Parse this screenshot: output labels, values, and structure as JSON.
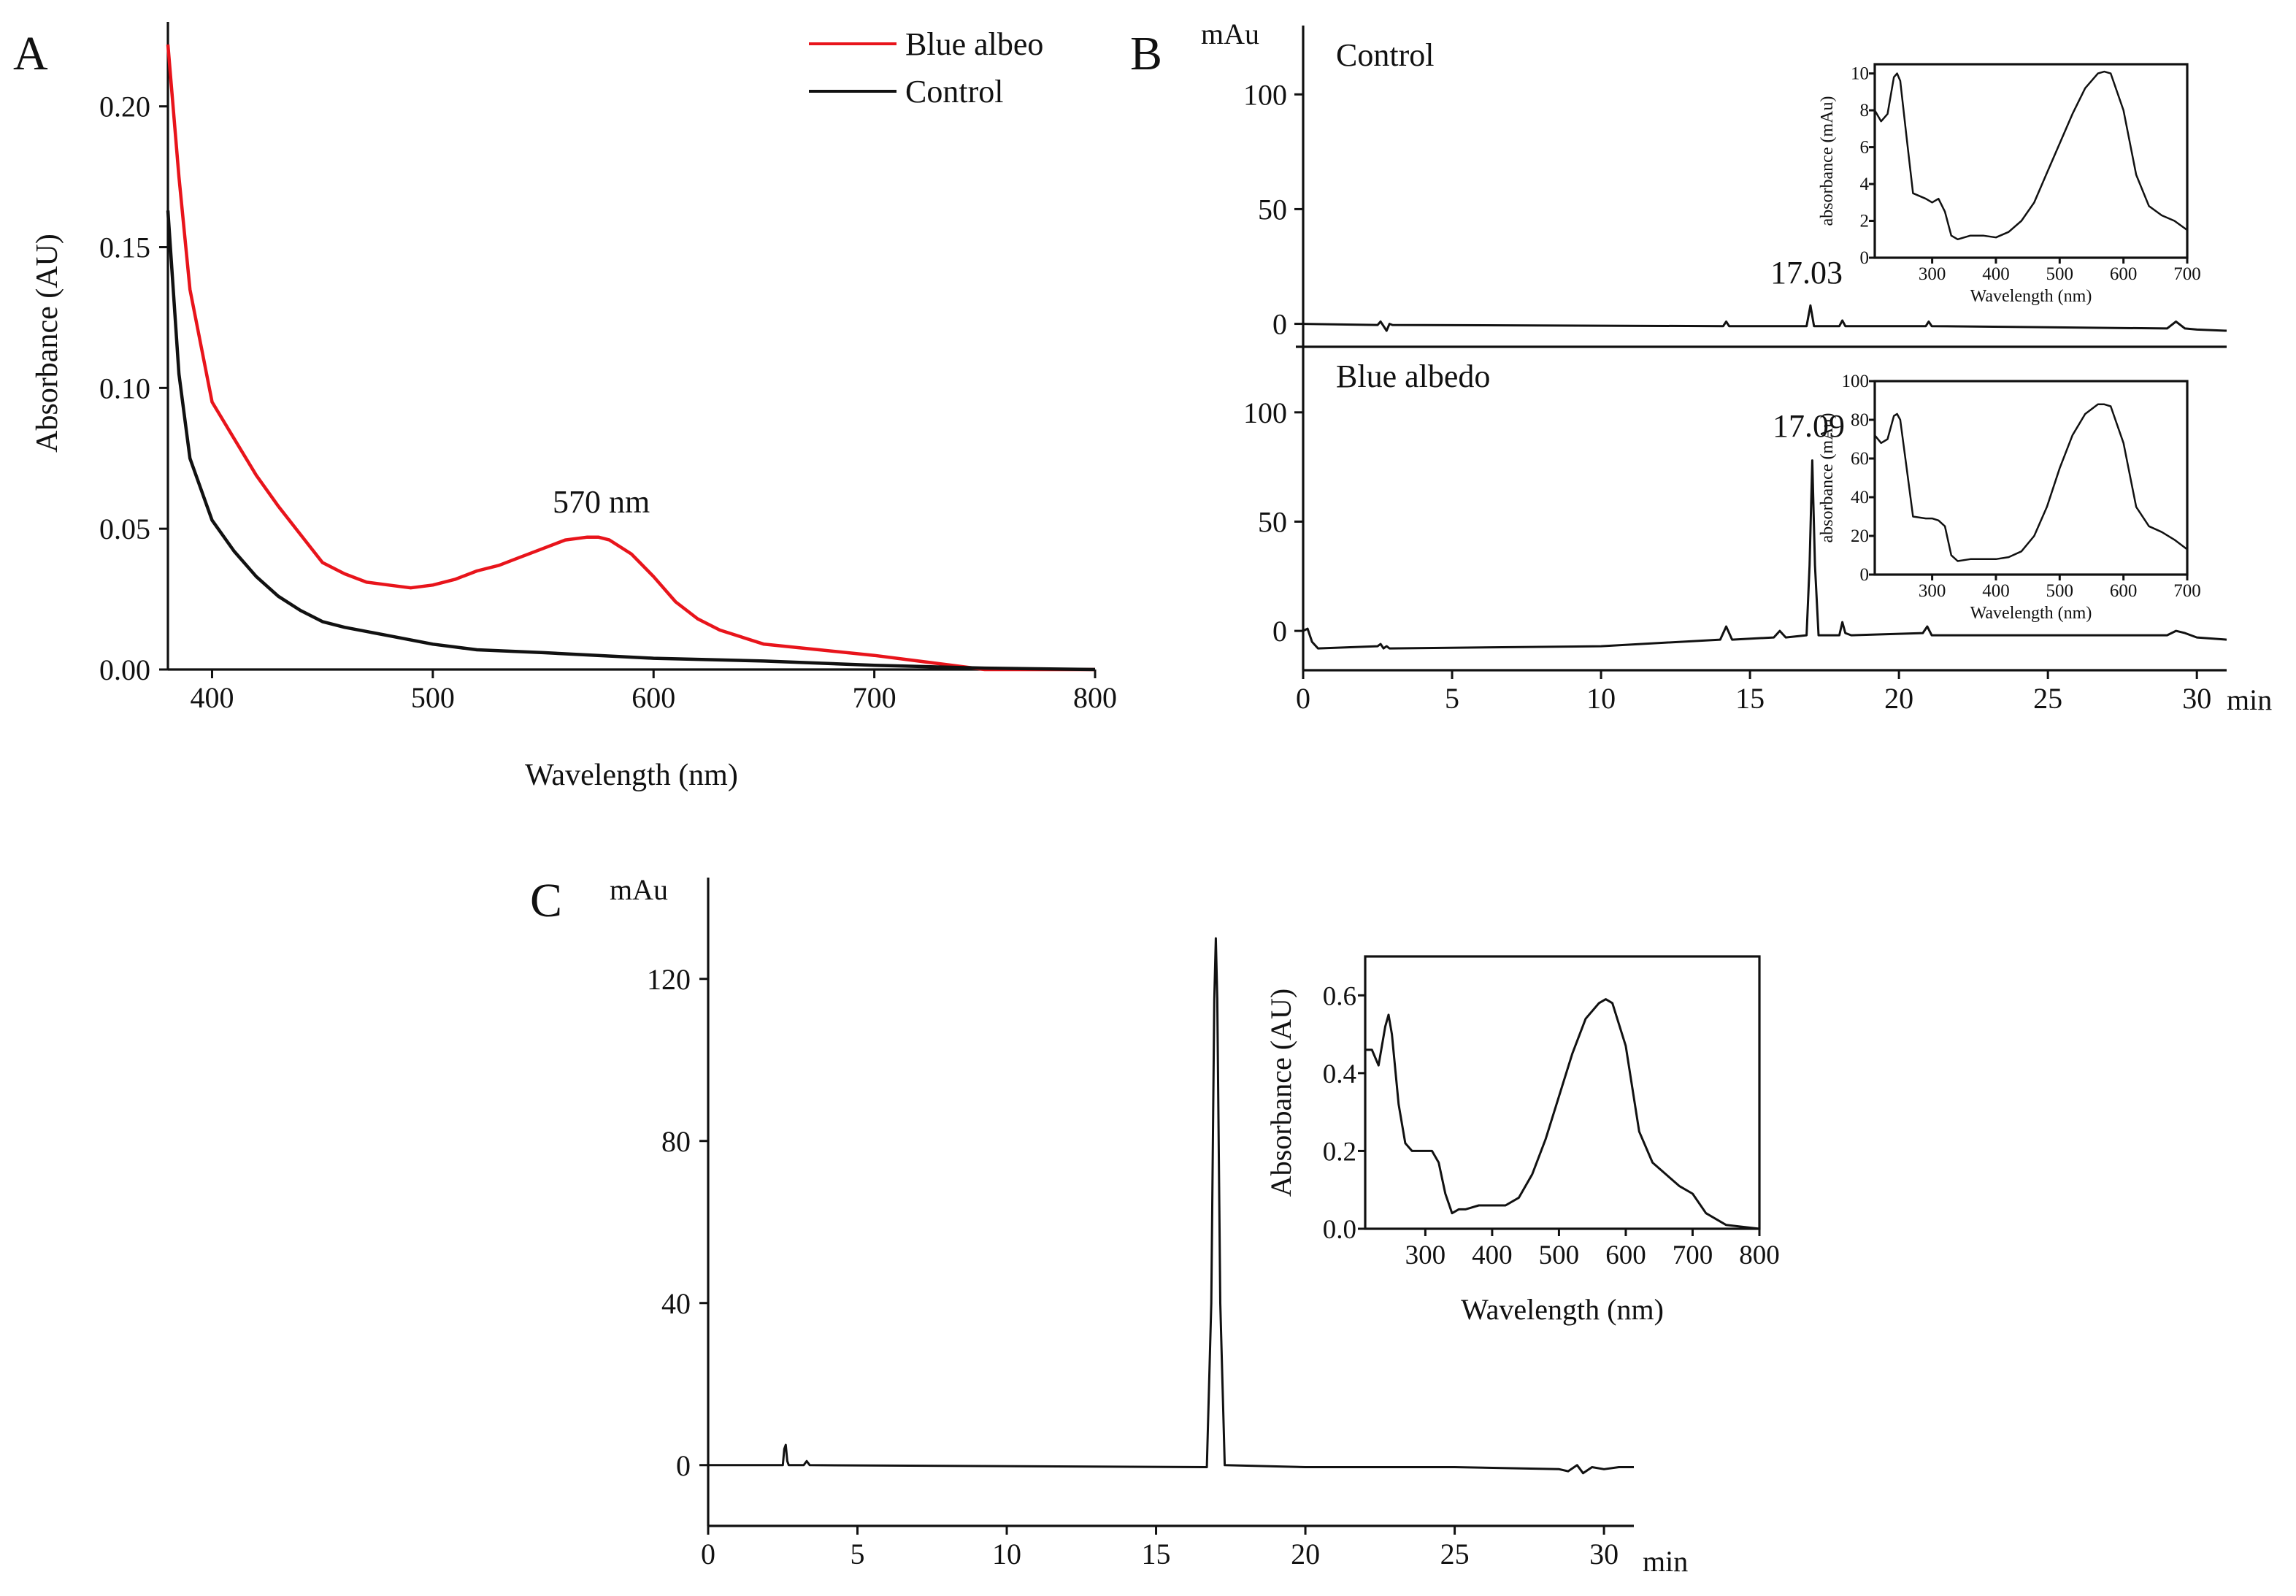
{
  "panels": {
    "A": {
      "label": "A",
      "ann_570": "570 nm"
    },
    "B": {
      "label": "B",
      "unit_y": "mAu",
      "unit_x": "min",
      "control_label": "Control",
      "blue_label": "Blue albedo",
      "peak_control": "17.03",
      "peak_blue": "17.09"
    },
    "C": {
      "label": "C",
      "unit_y": "mAu",
      "unit_x": "min"
    }
  },
  "colors": {
    "red": "#e8141b",
    "black": "#111111"
  },
  "chart_data": [
    {
      "id": "A",
      "type": "line",
      "xlabel": "Wavelength (nm)",
      "ylabel": "Absorbance (AU)",
      "xlim": [
        380,
        800
      ],
      "ylim": [
        0,
        0.23
      ],
      "xticks": [
        400,
        500,
        600,
        700,
        800
      ],
      "xtick_labels": [
        "400",
        "500",
        "600",
        "700",
        "800"
      ],
      "yticks": [
        0,
        0.05,
        0.1,
        0.15,
        0.2
      ],
      "ytick_labels": [
        "0.00",
        "0.05",
        "0.10",
        "0.15",
        "0.20"
      ],
      "legend": "top-right",
      "series": [
        {
          "name": "Blue albeo",
          "color": "#e8141b",
          "x": [
            380,
            385,
            390,
            400,
            410,
            420,
            430,
            440,
            450,
            460,
            470,
            480,
            490,
            500,
            510,
            520,
            530,
            540,
            550,
            560,
            570,
            575,
            580,
            590,
            600,
            610,
            620,
            630,
            650,
            700,
            750,
            800
          ],
          "y": [
            0.222,
            0.175,
            0.135,
            0.095,
            0.082,
            0.069,
            0.058,
            0.048,
            0.038,
            0.034,
            0.031,
            0.03,
            0.029,
            0.03,
            0.032,
            0.035,
            0.037,
            0.04,
            0.043,
            0.046,
            0.047,
            0.047,
            0.046,
            0.041,
            0.033,
            0.024,
            0.018,
            0.014,
            0.009,
            0.005,
            0.0,
            0.0
          ]
        },
        {
          "name": "Control",
          "color": "#111111",
          "x": [
            380,
            385,
            390,
            400,
            410,
            420,
            430,
            440,
            450,
            460,
            480,
            500,
            520,
            550,
            600,
            650,
            700,
            750,
            800
          ],
          "y": [
            0.163,
            0.105,
            0.075,
            0.053,
            0.042,
            0.033,
            0.026,
            0.021,
            0.017,
            0.015,
            0.012,
            0.009,
            0.007,
            0.006,
            0.004,
            0.003,
            0.0015,
            0.0005,
            0.0
          ]
        }
      ]
    },
    {
      "id": "B-control",
      "type": "line",
      "xlim": [
        0,
        31
      ],
      "ylim": [
        -10,
        130
      ],
      "yticks": [
        0,
        50,
        100
      ],
      "ytick_labels": [
        "0",
        "50",
        "100"
      ],
      "series": [
        {
          "name": "Control",
          "x": [
            0,
            2.5,
            2.6,
            2.7,
            2.8,
            2.9,
            3.0,
            14.1,
            14.2,
            14.3,
            16.9,
            17.03,
            17.15,
            18.0,
            18.1,
            18.2,
            20.9,
            21.0,
            21.1,
            29.0,
            29.3,
            29.6,
            30.0,
            31.0
          ],
          "y": [
            0,
            -0.5,
            1,
            -1,
            -3,
            0,
            -0.5,
            -1,
            1,
            -1,
            -1,
            8,
            -1,
            -1,
            1.5,
            -1,
            -1,
            1,
            -1,
            -2,
            1,
            -2,
            -2.5,
            -3
          ]
        }
      ]
    },
    {
      "id": "B-blue",
      "type": "line",
      "xlim": [
        0,
        31
      ],
      "ylim": [
        -18,
        130
      ],
      "yticks": [
        0,
        50,
        100
      ],
      "ytick_labels": [
        "0",
        "50",
        "100"
      ],
      "xticks": [
        0,
        5,
        10,
        15,
        20,
        25,
        30
      ],
      "xtick_labels": [
        "0",
        "5",
        "10",
        "15",
        "20",
        "25",
        "30"
      ],
      "series": [
        {
          "name": "Blue albedo",
          "x": [
            0,
            0.15,
            0.3,
            0.5,
            2.5,
            2.6,
            2.7,
            2.8,
            2.9,
            10,
            14.0,
            14.2,
            14.4,
            15.8,
            16.0,
            16.2,
            16.9,
            17.0,
            17.09,
            17.18,
            17.3,
            18.0,
            18.1,
            18.2,
            18.4,
            20.8,
            20.95,
            21.1,
            29.0,
            29.3,
            29.6,
            30.0,
            31.0
          ],
          "y": [
            0,
            1,
            -5,
            -8,
            -7,
            -6,
            -8,
            -7,
            -8,
            -7,
            -4,
            2,
            -4,
            -3,
            0,
            -3,
            -2,
            30,
            78,
            30,
            -2,
            -2,
            4,
            -1,
            -2,
            -1,
            2,
            -2,
            -2,
            0,
            -1,
            -3,
            -4
          ]
        }
      ]
    },
    {
      "id": "B-control-inset",
      "type": "line",
      "xlabel": "Wavelength (nm)",
      "ylabel": "absorbance (mAu)",
      "xlim": [
        210,
        700
      ],
      "ylim": [
        0,
        10.5
      ],
      "xticks": [
        300,
        400,
        500,
        600,
        700
      ],
      "xtick_labels": [
        "300",
        "400",
        "500",
        "600",
        "700"
      ],
      "yticks": [
        0,
        2,
        4,
        6,
        8,
        10
      ],
      "ytick_labels": [
        "0",
        "2",
        "4",
        "6",
        "8",
        "10"
      ],
      "series": [
        {
          "x": [
            210,
            220,
            230,
            240,
            245,
            250,
            260,
            270,
            290,
            300,
            310,
            320,
            330,
            340,
            360,
            380,
            400,
            420,
            440,
            460,
            480,
            500,
            520,
            540,
            560,
            570,
            580,
            600,
            620,
            640,
            660,
            680,
            700
          ],
          "y": [
            8.0,
            7.4,
            7.8,
            9.8,
            10.0,
            9.6,
            6.5,
            3.5,
            3.2,
            3.0,
            3.2,
            2.5,
            1.2,
            1.0,
            1.2,
            1.2,
            1.1,
            1.4,
            2.0,
            3.0,
            4.6,
            6.2,
            7.8,
            9.2,
            10.0,
            10.1,
            10.0,
            8.0,
            4.5,
            2.8,
            2.3,
            2.0,
            1.5
          ]
        }
      ]
    },
    {
      "id": "B-blue-inset",
      "type": "line",
      "xlabel": "Wavelength (nm)",
      "ylabel": "absorbance (mAu)",
      "xlim": [
        210,
        700
      ],
      "ylim": [
        0,
        100
      ],
      "xticks": [
        300,
        400,
        500,
        600,
        700
      ],
      "xtick_labels": [
        "300",
        "400",
        "500",
        "600",
        "700"
      ],
      "yticks": [
        0,
        20,
        40,
        60,
        80,
        100
      ],
      "ytick_labels": [
        "0",
        "20",
        "40",
        "60",
        "80",
        "100"
      ],
      "series": [
        {
          "x": [
            210,
            220,
            230,
            240,
            245,
            250,
            260,
            270,
            290,
            300,
            310,
            320,
            330,
            340,
            360,
            380,
            400,
            420,
            440,
            460,
            480,
            500,
            520,
            540,
            560,
            570,
            580,
            600,
            620,
            640,
            660,
            680,
            700
          ],
          "y": [
            72,
            68,
            70,
            82,
            83,
            80,
            55,
            30,
            29,
            29,
            28,
            25,
            10,
            7,
            8,
            8,
            8,
            9,
            12,
            20,
            35,
            55,
            72,
            83,
            88,
            88,
            87,
            68,
            35,
            25,
            22,
            18,
            13
          ]
        }
      ]
    },
    {
      "id": "C",
      "type": "line",
      "xlim": [
        0,
        31
      ],
      "ylim": [
        -15,
        145
      ],
      "xticks": [
        0,
        5,
        10,
        15,
        20,
        25,
        30
      ],
      "xtick_labels": [
        "0",
        "5",
        "10",
        "15",
        "20",
        "25",
        "30"
      ],
      "yticks": [
        0,
        40,
        80,
        120
      ],
      "ytick_labels": [
        "0",
        "40",
        "80",
        "120"
      ],
      "series": [
        {
          "x": [
            0,
            2.5,
            2.55,
            2.6,
            2.65,
            2.7,
            3.2,
            3.3,
            3.4,
            16.7,
            16.85,
            16.95,
            17.0,
            17.05,
            17.15,
            17.3,
            20,
            25,
            28.5,
            28.8,
            29.1,
            29.3,
            29.6,
            30.0,
            30.5,
            31.0
          ],
          "y": [
            0,
            0,
            4,
            5,
            1,
            0,
            0,
            1,
            0,
            -0.5,
            40,
            115,
            130,
            115,
            40,
            0,
            -0.5,
            -0.5,
            -1,
            -1.5,
            0,
            -2,
            -0.5,
            -1,
            -0.5,
            -0.5
          ]
        }
      ]
    },
    {
      "id": "C-inset",
      "type": "line",
      "xlabel": "Wavelength (nm)",
      "ylabel": "Absorbance (AU)",
      "xlim": [
        210,
        800
      ],
      "ylim": [
        0,
        0.7
      ],
      "xticks": [
        300,
        400,
        500,
        600,
        700,
        800
      ],
      "xtick_labels": [
        "300",
        "400",
        "500",
        "600",
        "700",
        "800"
      ],
      "yticks": [
        0,
        0.2,
        0.4,
        0.6
      ],
      "ytick_labels": [
        "0.0",
        "0.2",
        "0.4",
        "0.6"
      ],
      "series": [
        {
          "x": [
            210,
            220,
            230,
            240,
            245,
            250,
            260,
            270,
            280,
            300,
            310,
            320,
            330,
            340,
            350,
            360,
            380,
            400,
            420,
            440,
            460,
            480,
            500,
            520,
            540,
            560,
            570,
            580,
            600,
            620,
            640,
            660,
            680,
            700,
            720,
            750,
            800
          ],
          "y": [
            0.46,
            0.46,
            0.42,
            0.52,
            0.55,
            0.5,
            0.32,
            0.22,
            0.2,
            0.2,
            0.2,
            0.17,
            0.09,
            0.04,
            0.05,
            0.05,
            0.06,
            0.06,
            0.06,
            0.08,
            0.14,
            0.23,
            0.34,
            0.45,
            0.54,
            0.58,
            0.59,
            0.58,
            0.47,
            0.25,
            0.17,
            0.14,
            0.11,
            0.09,
            0.04,
            0.01,
            0.0
          ]
        }
      ]
    }
  ]
}
